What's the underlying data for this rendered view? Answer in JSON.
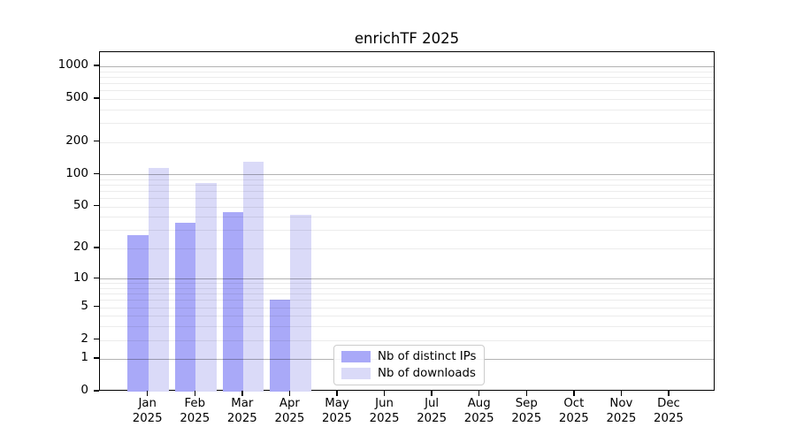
{
  "title": "enrichTF 2025",
  "chart_data": {
    "type": "bar",
    "title": "enrichTF 2025",
    "scale": "log10(1+v)",
    "grid": "on",
    "legend_position": "bottom-center",
    "categories": [
      "Jan 2025",
      "Feb 2025",
      "Mar 2025",
      "Apr 2025",
      "May 2025",
      "Jun 2025",
      "Jul 2025",
      "Aug 2025",
      "Sep 2025",
      "Oct 2025",
      "Nov 2025",
      "Dec 2025"
    ],
    "x_tick_months": [
      "Jan",
      "Feb",
      "Mar",
      "Apr",
      "May",
      "Jun",
      "Jul",
      "Aug",
      "Sep",
      "Oct",
      "Nov",
      "Dec"
    ],
    "x_tick_year": "2025",
    "series": [
      {
        "name": "Nb of distinct IPs",
        "color": "#a9a9f8",
        "values": [
          27,
          35,
          44,
          6,
          0,
          0,
          0,
          0,
          0,
          0,
          0,
          0
        ]
      },
      {
        "name": "Nb of downloads",
        "color": "#dadaf8",
        "values": [
          115,
          83,
          132,
          42,
          0,
          0,
          0,
          0,
          0,
          0,
          0,
          0
        ]
      }
    ],
    "y_ticks": [
      {
        "v": 0,
        "label": "0"
      },
      {
        "v": 1,
        "label": "1"
      },
      {
        "v": 2,
        "label": "2"
      },
      {
        "v": 5,
        "label": "5"
      },
      {
        "v": 10,
        "label": "10"
      },
      {
        "v": 20,
        "label": "20"
      },
      {
        "v": 50,
        "label": "50"
      },
      {
        "v": 100,
        "label": "100"
      },
      {
        "v": 200,
        "label": "200"
      },
      {
        "v": 500,
        "label": "500"
      },
      {
        "v": 1000,
        "label": "1000"
      }
    ],
    "major_grid_values": [
      1,
      10,
      100,
      1000
    ],
    "minor_grid_values": [
      2,
      3,
      4,
      5,
      6,
      7,
      8,
      9,
      20,
      30,
      40,
      50,
      60,
      70,
      80,
      90,
      200,
      300,
      400,
      500,
      600,
      700,
      800,
      900
    ],
    "ylim": [
      0,
      1350
    ]
  },
  "colors": {
    "bar_ips": "#a9a9f8",
    "bar_downloads": "#dadaf8",
    "grid_major": "#b3b3b3",
    "grid_minor": "#ececec",
    "axis": "#000000",
    "legend_border": "#cccccc"
  }
}
